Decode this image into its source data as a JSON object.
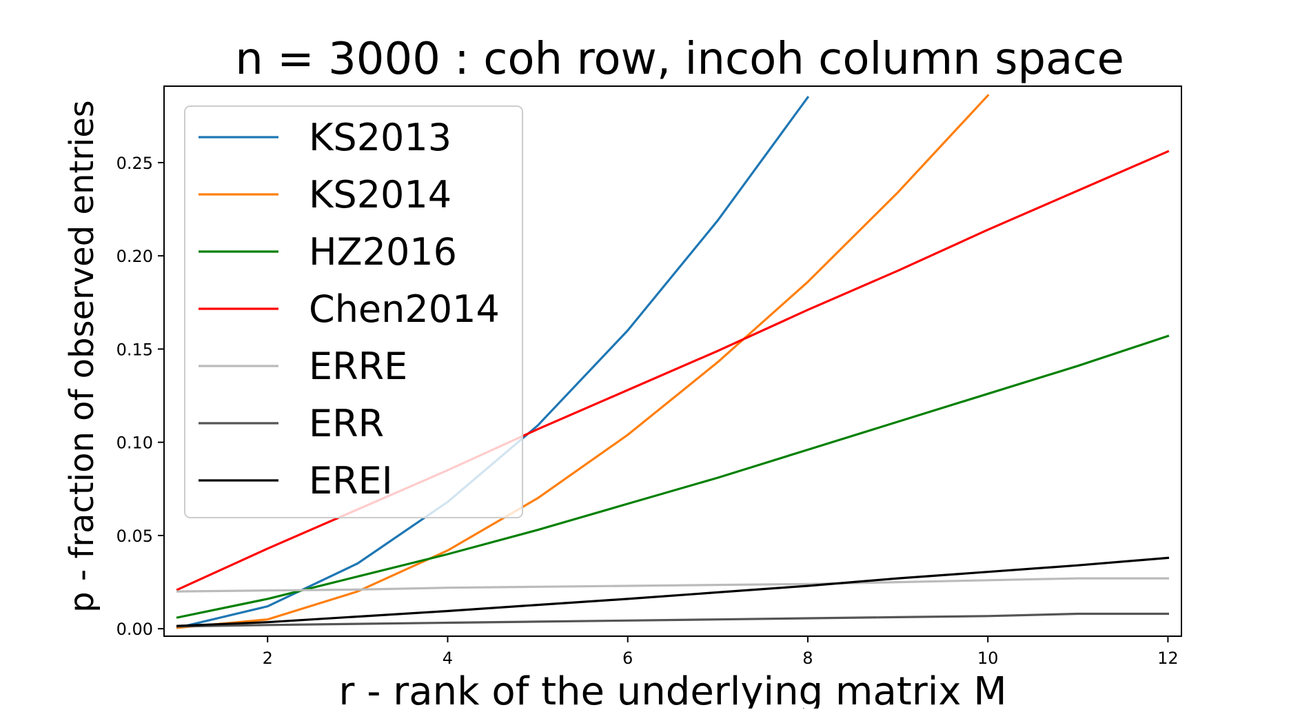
{
  "chart_data": {
    "type": "line",
    "title": "n = 3000 : coh row, incoh column space",
    "xlabel": "r - rank of the underlying matrix M",
    "ylabel": "p - fraction of observed entries",
    "xlim": [
      0.85,
      12.15
    ],
    "ylim": [
      -0.004,
      0.291
    ],
    "xticks": [
      2,
      4,
      6,
      8,
      10,
      12
    ],
    "xtick_labels": [
      "2",
      "4",
      "6",
      "8",
      "10",
      "12"
    ],
    "yticks": [
      0.0,
      0.05,
      0.1,
      0.15,
      0.2,
      0.25
    ],
    "ytick_labels": [
      "0.00",
      "0.05",
      "0.10",
      "0.15",
      "0.20",
      "0.25"
    ],
    "grid": false,
    "legend_position": "top-left",
    "series": [
      {
        "name": "KS2013",
        "color": "#1f77b4",
        "x": [
          1,
          2,
          3,
          4,
          5,
          6,
          7,
          8
        ],
        "y": [
          0.0005,
          0.012,
          0.035,
          0.068,
          0.109,
          0.16,
          0.219,
          0.285
        ]
      },
      {
        "name": "KS2014",
        "color": "#ff7f0e",
        "x": [
          1,
          2,
          3,
          4,
          5,
          6,
          7,
          8,
          9,
          10
        ],
        "y": [
          0.0005,
          0.005,
          0.02,
          0.042,
          0.07,
          0.104,
          0.143,
          0.186,
          0.234,
          0.286
        ]
      },
      {
        "name": "HZ2016",
        "color": "#008000",
        "x": [
          1,
          2,
          3,
          4,
          5,
          6,
          7,
          8,
          9,
          10,
          11,
          12
        ],
        "y": [
          0.006,
          0.016,
          0.028,
          0.04,
          0.053,
          0.067,
          0.081,
          0.096,
          0.111,
          0.126,
          0.141,
          0.157
        ]
      },
      {
        "name": "Chen2014",
        "color": "#ff0000",
        "x": [
          1,
          2,
          3,
          4,
          5,
          6,
          7,
          8,
          9,
          10,
          11,
          12
        ],
        "y": [
          0.021,
          0.043,
          0.064,
          0.085,
          0.107,
          0.128,
          0.149,
          0.171,
          0.192,
          0.214,
          0.235,
          0.256
        ]
      },
      {
        "name": "ERRE",
        "color": "#bbbbbb",
        "x": [
          1,
          2,
          3,
          4,
          5,
          6,
          7,
          8,
          9,
          10,
          11,
          12
        ],
        "y": [
          0.02,
          0.0205,
          0.021,
          0.022,
          0.0225,
          0.023,
          0.0235,
          0.024,
          0.025,
          0.026,
          0.027,
          0.027
        ]
      },
      {
        "name": "ERR",
        "color": "#555555",
        "x": [
          1,
          2,
          3,
          4,
          5,
          6,
          7,
          8,
          9,
          10,
          11,
          12
        ],
        "y": [
          0.0012,
          0.002,
          0.0026,
          0.0032,
          0.0038,
          0.0044,
          0.005,
          0.0056,
          0.0062,
          0.0068,
          0.008,
          0.008
        ]
      },
      {
        "name": "EREI",
        "color": "#000000",
        "x": [
          1,
          2,
          3,
          4,
          5,
          6,
          7,
          8,
          9,
          10,
          11,
          12
        ],
        "y": [
          0.0015,
          0.0035,
          0.0065,
          0.0095,
          0.0128,
          0.016,
          0.0195,
          0.023,
          0.027,
          0.0305,
          0.034,
          0.038
        ]
      }
    ]
  }
}
